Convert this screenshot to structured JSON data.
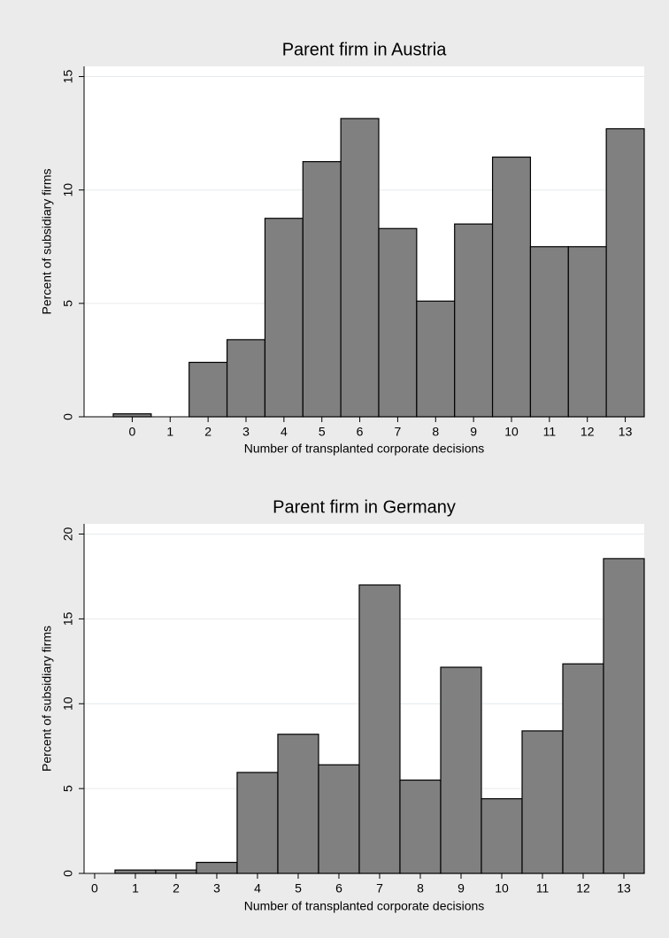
{
  "chart_data": [
    {
      "type": "histogram",
      "title": "Parent firm in Austria",
      "x_label": "Number of transplanted corporate decisions",
      "y_label": "Percent of subsidiary firms",
      "bins": [
        -0.5,
        0.5,
        1.5,
        2.5,
        3.5,
        4.5,
        5.5,
        6.5,
        7.5,
        8.5,
        9.5,
        10.5,
        11.5,
        12.5,
        13.5
      ],
      "values": [
        0.13,
        0,
        2.4,
        3.4,
        8.75,
        11.25,
        13.15,
        8.3,
        5.1,
        8.5,
        11.45,
        7.5,
        7.5,
        12.7
      ],
      "color": "#808080",
      "xlim": [
        -1.27,
        13.5
      ],
      "xticks": [
        0,
        1,
        2,
        3,
        4,
        5,
        6,
        7,
        8,
        9,
        10,
        11,
        12,
        13
      ],
      "ylim": [
        0,
        15.45
      ],
      "yticks": [
        0,
        5,
        10,
        15
      ],
      "grid": true
    },
    {
      "type": "histogram",
      "title": "Parent firm in Germany",
      "x_label": "Number of transplanted corporate decisions",
      "y_label": "Percent of subsidiary firms",
      "bins": [
        0.5,
        1.5,
        2.5,
        3.5,
        4.5,
        5.5,
        6.5,
        7.5,
        8.5,
        9.5,
        10.5,
        11.5,
        12.5,
        13.5
      ],
      "values": [
        0.2,
        0.2,
        0.65,
        5.95,
        8.2,
        6.4,
        17,
        5.5,
        12.15,
        4.4,
        8.4,
        12.35,
        18.55
      ],
      "color": "#808080",
      "xlim": [
        -0.26,
        13.5
      ],
      "xticks": [
        0,
        1,
        2,
        3,
        4,
        5,
        6,
        7,
        8,
        9,
        10,
        11,
        12,
        13
      ],
      "ylim": [
        0,
        20.6
      ],
      "yticks": [
        0,
        5,
        10,
        15,
        20
      ],
      "grid": true
    }
  ]
}
